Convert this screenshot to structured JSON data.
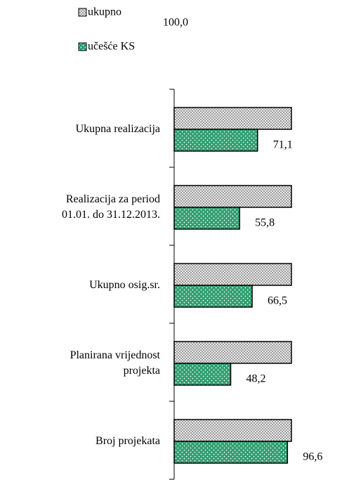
{
  "chart_data": {
    "type": "hbar",
    "categories": [
      [
        "Ukupna realizacija"
      ],
      [
        "Realizacija za period",
        "01.01. do  31.12.2013."
      ],
      [
        "Ukupno osig.sr."
      ],
      [
        "Planirana vrijednost",
        "projekta"
      ],
      [
        "Broj projekata"
      ]
    ],
    "series": [
      {
        "name": "ukupno",
        "color": "#d0d0d0",
        "values": [
          100,
          100,
          100,
          100,
          100
        ]
      },
      {
        "name": "učešće KS",
        "color": "#2e9e6e",
        "values": [
          71.1,
          55.8,
          66.5,
          48.2,
          96.6
        ],
        "value_labels": [
          "71,1",
          "55,8",
          "66,5",
          "48,2",
          "96,6"
        ]
      }
    ],
    "annotation": "100,0",
    "xlim": [
      0,
      100
    ]
  }
}
